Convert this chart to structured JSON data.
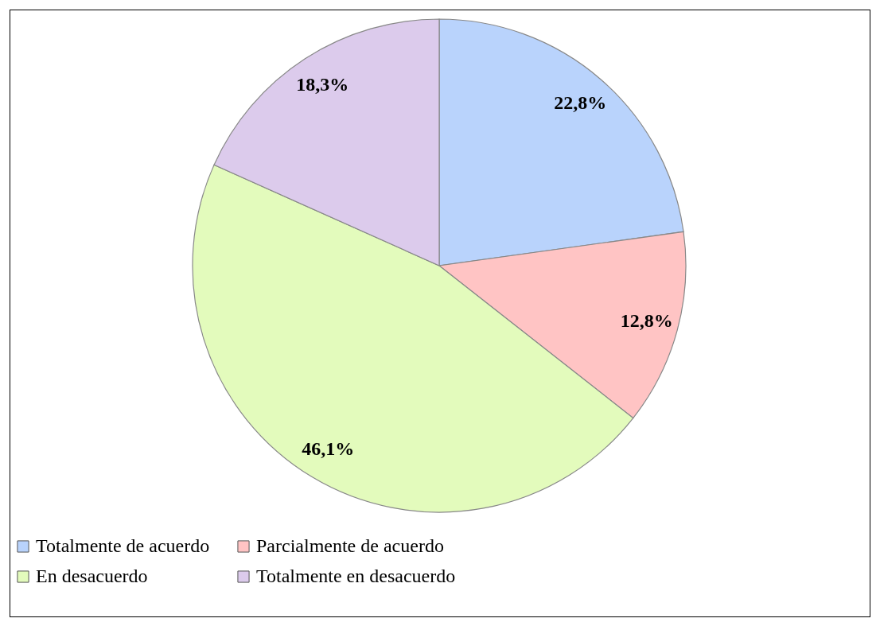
{
  "chart_data": {
    "type": "pie",
    "categories": [
      "Totalmente de acuerdo",
      "Parcialmente de acuerdo",
      "En desacuerdo",
      "Totalmente en desacuerdo"
    ],
    "values": [
      22.8,
      12.8,
      46.1,
      18.3
    ],
    "colors": [
      "#b9d3fc",
      "#ffc4c4",
      "#e3fbbc",
      "#dccbec"
    ],
    "value_labels": [
      "22,8%",
      "12,8%",
      "46,1%",
      "18,3%"
    ],
    "legend": "bottom"
  }
}
